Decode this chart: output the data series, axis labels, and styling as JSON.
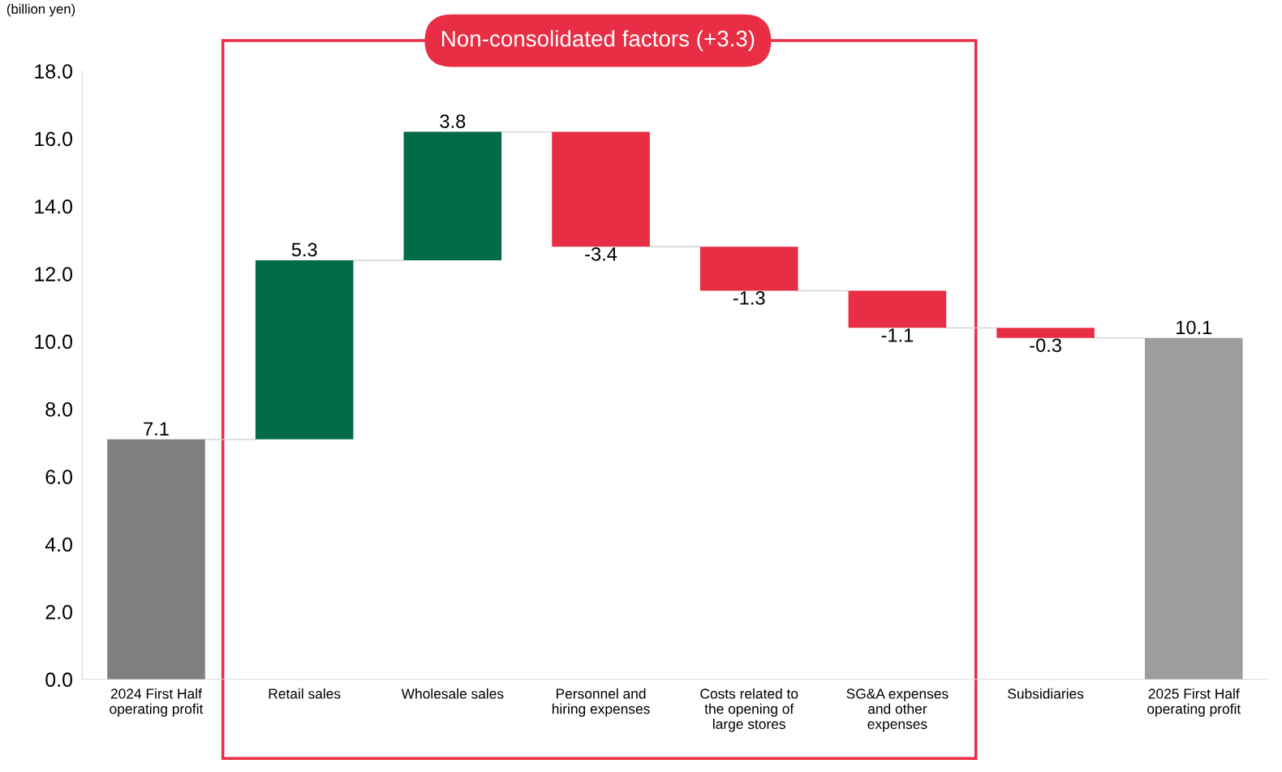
{
  "chart_data": {
    "type": "bar",
    "ylabel": "(billion yen)",
    "categories": [
      "2024 First Half\noperating profit",
      "Retail sales",
      "Wholesale sales",
      "Personnel and\nhiring expenses",
      "Costs related to\nthe opening of\nlarge stores",
      "SG&A expenses\nand other\nexpenses",
      "Subsidiaries",
      "2025 First Half\noperating profit"
    ],
    "values": [
      7.1,
      5.3,
      3.8,
      -3.4,
      -1.3,
      -1.1,
      -0.3,
      10.1
    ],
    "base": [
      0,
      7.1,
      12.4,
      16.2,
      12.8,
      11.5,
      10.4,
      0
    ],
    "colors": [
      "#808080",
      "#026a46",
      "#026a46",
      "#e82e44",
      "#e82e44",
      "#e82e44",
      "#e82e44",
      "#9d9d9d"
    ],
    "ylim": [
      0,
      18
    ],
    "yticks": [
      {
        "value": 0,
        "label": "0.0"
      },
      {
        "value": 2,
        "label": "2.0"
      },
      {
        "value": 4,
        "label": "4.0"
      },
      {
        "value": 6,
        "label": "6.0"
      },
      {
        "value": 8,
        "label": "8.0"
      },
      {
        "value": 10,
        "label": "10.0"
      },
      {
        "value": 12,
        "label": "12.0"
      },
      {
        "value": 14,
        "label": "14.0"
      },
      {
        "value": 16,
        "label": "16.0"
      },
      {
        "value": 18,
        "label": "18.0"
      }
    ],
    "data_labels": true,
    "grid": false,
    "annotations": [
      "Non-consolidated factors (+3.3)"
    ]
  }
}
